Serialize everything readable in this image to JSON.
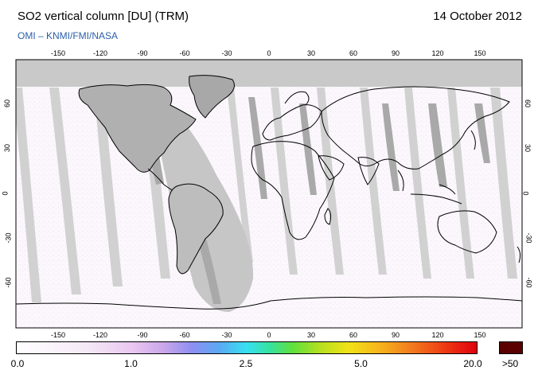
{
  "header": {
    "title": "SO2 vertical column [DU] (TRM)",
    "subtitle": "OMI  –  KNMI/FMI/NASA",
    "date": "14 October 2012"
  },
  "map": {
    "projection": "equirectangular",
    "lon_ticks": [
      "-150",
      "-120",
      "-90",
      "-60",
      "-30",
      "0",
      "30",
      "60",
      "90",
      "120",
      "150"
    ],
    "lat_ticks_left": [
      "60",
      "30",
      "0",
      "-30",
      "-60"
    ],
    "lat_ticks_right": [
      "60",
      "30",
      "0",
      "-30",
      "-60"
    ],
    "colors": {
      "background": "#fbf7fc",
      "no_data": "#c9c9c9",
      "no_data_dark": "#a9a9a9",
      "coastline": "#000000"
    }
  },
  "colorbar": {
    "labels": [
      "0.0",
      "1.0",
      "2.5",
      "5.0",
      "20.0"
    ],
    "over_label": ">50",
    "over_color": "#5a0000"
  }
}
